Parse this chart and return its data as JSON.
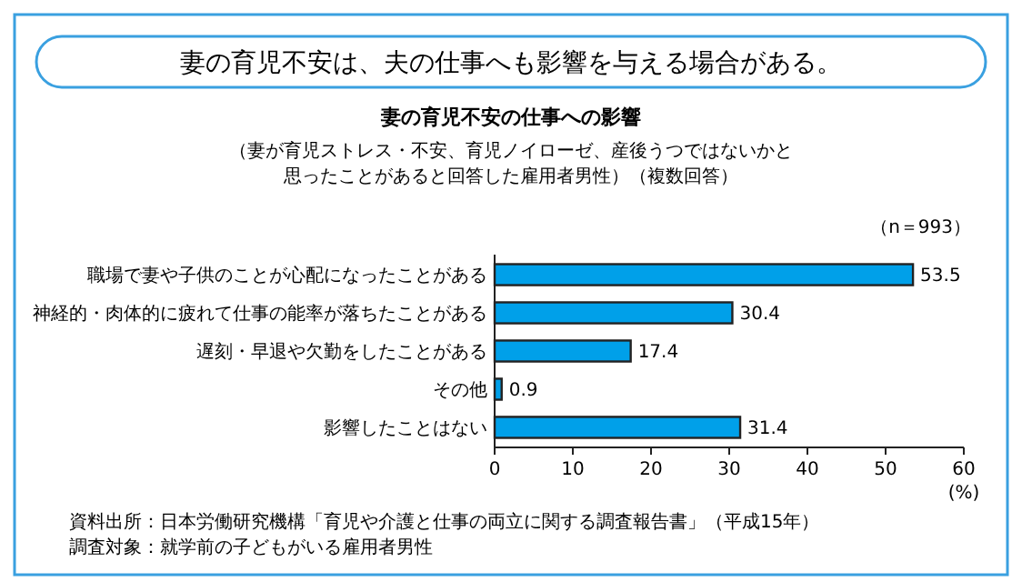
{
  "chart_data": {
    "type": "bar",
    "orientation": "horizontal",
    "title": "妻の育児不安は、夫の仕事へも影響を与える場合がある。",
    "subtitle": "妻の育児不安の仕事への影響",
    "annotations": [
      "（妻が育児ストレス・不安、育児ノイローゼ、産後うつではないかと",
      "思ったことがあると回答した雇用者男性）（複数回答）",
      "（n＝993）",
      "資料出所：日本労働研究機構「育児や介護と仕事の両立に関する調査報告書」（平成15年）",
      "調査対象：就学前の子どもがいる雇用者男性"
    ],
    "categories": [
      "職場で妻や子供のことが心配になったことがある",
      "神経的・肉体的に疲れて仕事の能率が落ちたことがある",
      "遅刻・早退や欠勤をしたことがある",
      "その他",
      "影響したことはない"
    ],
    "values": [
      53.5,
      30.4,
      17.4,
      0.9,
      31.4
    ],
    "color": "#00a0e9",
    "data_labels": true,
    "xlabel": "(%)",
    "xlim": [
      0,
      60
    ],
    "xticks": [
      0,
      10,
      20,
      30,
      40,
      50,
      60
    ],
    "grid": false
  }
}
